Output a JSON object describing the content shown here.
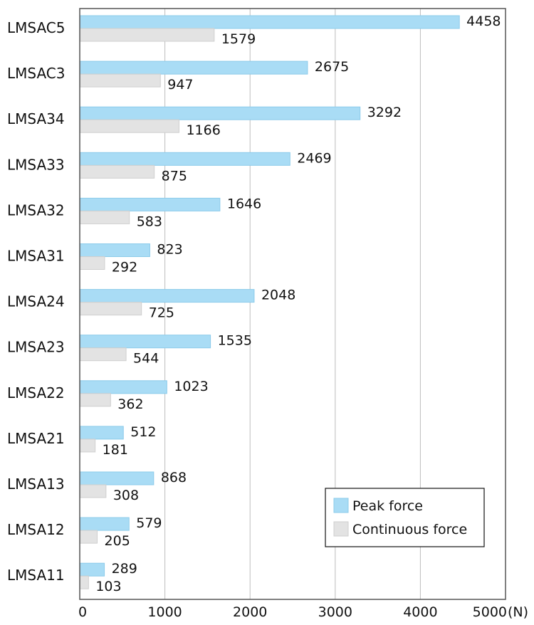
{
  "chart_data": {
    "type": "bar",
    "orientation": "horizontal",
    "categories": [
      "LMSAC5",
      "LMSAC3",
      "LMSA34",
      "LMSA33",
      "LMSA32",
      "LMSA31",
      "LMSA24",
      "LMSA23",
      "LMSA22",
      "LMSA21",
      "LMSA13",
      "LMSA12",
      "LMSA11"
    ],
    "series": [
      {
        "name": "Peak force",
        "color": "#a9dcf5",
        "values": [
          4458,
          2675,
          3292,
          2469,
          1646,
          823,
          2048,
          1535,
          1023,
          512,
          868,
          579,
          289
        ]
      },
      {
        "name": "Continuous force",
        "color": "#e3e3e3",
        "values": [
          1579,
          947,
          1166,
          875,
          583,
          292,
          725,
          544,
          362,
          181,
          308,
          205,
          103
        ]
      }
    ],
    "xlim": [
      0,
      5000
    ],
    "xticks": [
      0,
      1000,
      2000,
      3000,
      4000,
      5000
    ],
    "xunit": "(N)",
    "grid": "vertical",
    "legend": "bottom-right"
  }
}
